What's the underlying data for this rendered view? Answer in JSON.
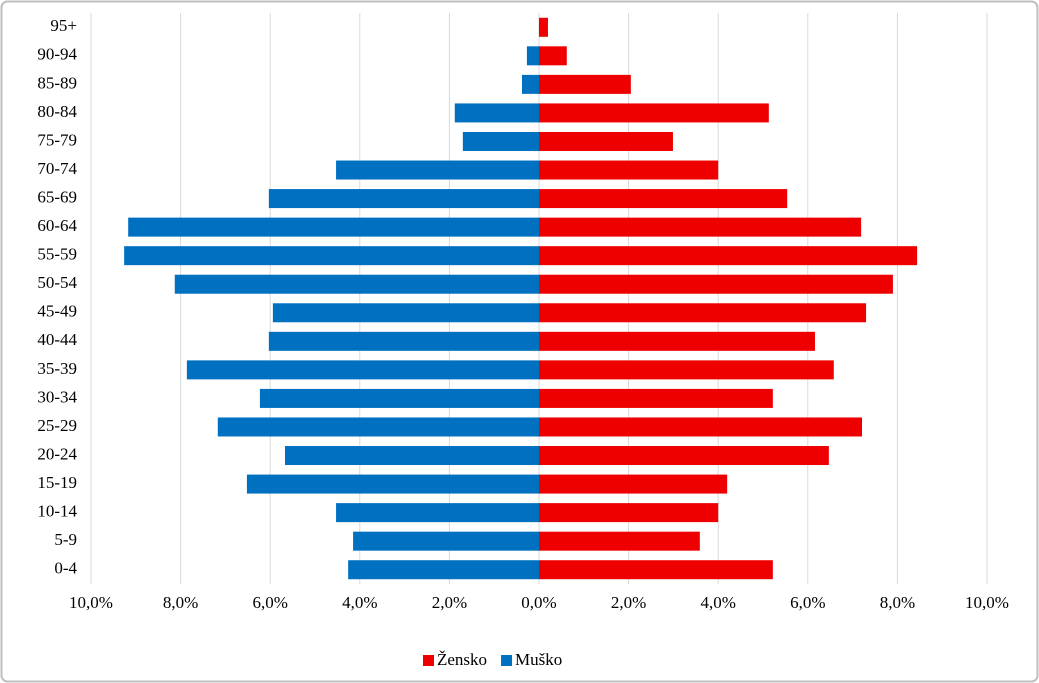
{
  "chart_data": {
    "type": "bar",
    "orientation": "horizontal",
    "stacked": false,
    "categories": [
      "95+",
      "90-94",
      "85-89",
      "80-84",
      "75-79",
      "70-74",
      "65-69",
      "60-64",
      "55-59",
      "50-54",
      "45-49",
      "40-44",
      "35-39",
      "30-34",
      "25-29",
      "20-24",
      "15-19",
      "10-14",
      "5-9",
      "0-4"
    ],
    "series": [
      {
        "name": "Žensko",
        "color": "#ee0000",
        "values": [
          0.2,
          0.62,
          2.05,
          5.13,
          2.99,
          4.0,
          5.54,
          7.19,
          8.44,
          7.9,
          7.3,
          6.16,
          6.58,
          5.22,
          7.21,
          6.47,
          4.2,
          4.0,
          3.59,
          5.22
        ]
      },
      {
        "name": "Muško",
        "color": "#0070c0",
        "values": [
          0,
          -0.27,
          -0.38,
          -1.88,
          -1.7,
          -4.53,
          -6.03,
          -9.17,
          -9.26,
          -8.13,
          -5.94,
          -6.03,
          -7.86,
          -6.23,
          -7.17,
          -5.67,
          -6.52,
          -4.53,
          -4.15,
          -4.26
        ]
      }
    ],
    "xlim": [
      -10,
      10
    ],
    "xticks": [
      {
        "value": -10,
        "label": "10,0%"
      },
      {
        "value": -8,
        "label": "8,0%"
      },
      {
        "value": -6,
        "label": "6,0%"
      },
      {
        "value": -4,
        "label": "4,0%"
      },
      {
        "value": -2,
        "label": "2,0%"
      },
      {
        "value": 0,
        "label": "0,0%"
      },
      {
        "value": 2,
        "label": "2,0%"
      },
      {
        "value": 4,
        "label": "4,0%"
      },
      {
        "value": 6,
        "label": "6,0%"
      },
      {
        "value": 8,
        "label": "8,0%"
      },
      {
        "value": 10,
        "label": "10,0%"
      }
    ],
    "grid": true,
    "legend": "bottom"
  }
}
